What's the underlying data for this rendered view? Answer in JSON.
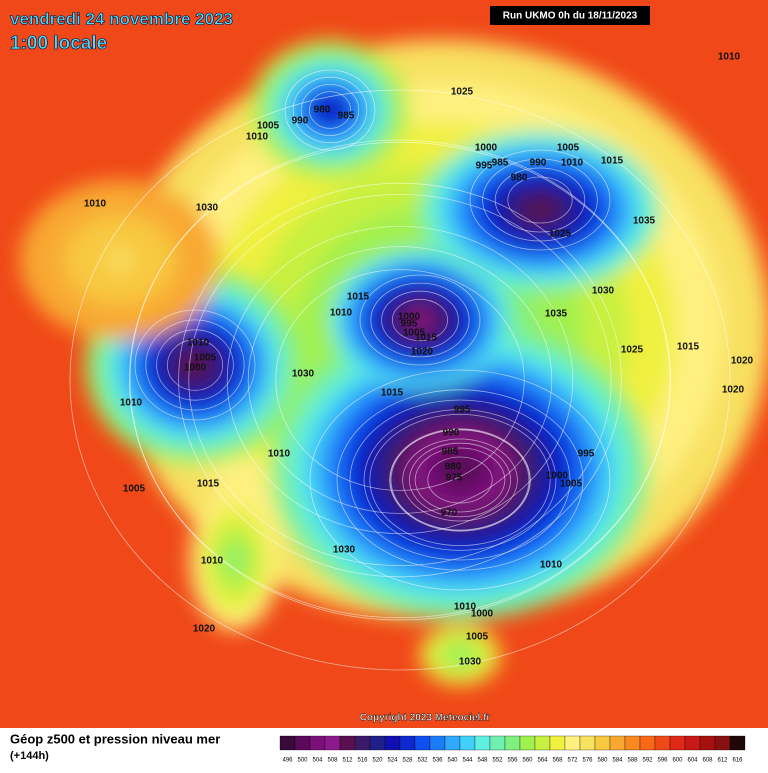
{
  "header": {
    "title": "vendredi 24 novembre 2023",
    "subtitle": "1:00 locale",
    "run": "Run UKMO 0h du 18/11/2023"
  },
  "map": {
    "pressure_labels": [
      "1010",
      "1030",
      "1025",
      "980",
      "985",
      "1005",
      "990",
      "1010",
      "1010",
      "1000",
      "995",
      "985",
      "980",
      "990",
      "1005",
      "1010",
      "1015",
      "1035",
      "1025",
      "1015",
      "1010",
      "1000",
      "995",
      "1005",
      "1015",
      "1020",
      "1030",
      "1035",
      "1025",
      "1015",
      "1020",
      "1020",
      "1010",
      "1005",
      "1000",
      "1010",
      "1030",
      "1015",
      "995",
      "990",
      "985",
      "980",
      "975",
      "970",
      "1000",
      "1005",
      "995",
      "1010",
      "1010",
      "1000",
      "1005",
      "1030",
      "1010",
      "1020",
      "1005",
      "1010",
      "1030",
      "1015"
    ],
    "copyright": "Copyright 2023 Meteociel.fr"
  },
  "footer": {
    "title": "Géop z500 et pression niveau mer",
    "subtitle": "(+144h)"
  },
  "legend": {
    "labels": [
      496,
      500,
      504,
      508,
      512,
      516,
      520,
      524,
      528,
      532,
      536,
      540,
      544,
      548,
      552,
      556,
      560,
      564,
      568,
      572,
      576,
      580,
      584,
      588,
      592,
      596,
      600,
      604,
      608,
      612,
      616
    ],
    "colors": [
      "#3a0a3a",
      "#5a0a5a",
      "#7a107a",
      "#8c1a8c",
      "#5a1050",
      "#3c1a6a",
      "#20208a",
      "#1010b0",
      "#1028d0",
      "#1050f0",
      "#1c7cf8",
      "#30a8fc",
      "#40d0f8",
      "#60f0e0",
      "#70f0b0",
      "#80f080",
      "#a0f050",
      "#c8f040",
      "#f0f040",
      "#fff080",
      "#f8e060",
      "#f8c840",
      "#f8a830",
      "#f88820",
      "#f86818",
      "#f04818",
      "#e02818",
      "#c81818",
      "#a81010",
      "#881010",
      "#200808"
    ]
  }
}
